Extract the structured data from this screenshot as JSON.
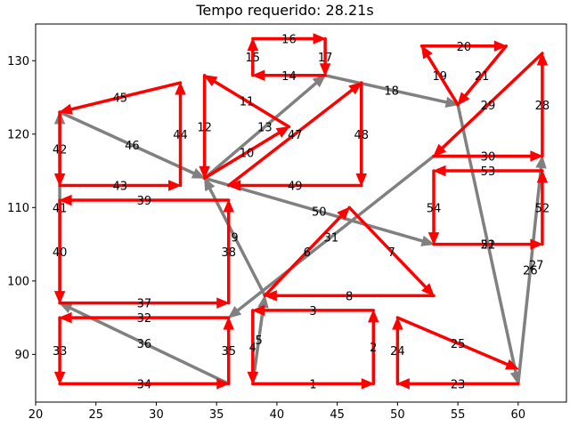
{
  "chart_data": {
    "type": "line",
    "title": "Tempo requerido: 28.21s",
    "xlabel": "",
    "ylabel": "",
    "xlim": [
      20,
      64
    ],
    "ylim": [
      83.5,
      135
    ],
    "xticks": [
      20,
      25,
      30,
      35,
      40,
      45,
      50,
      55,
      60
    ],
    "yticks": [
      90,
      100,
      110,
      120,
      130
    ],
    "grid": false,
    "colors": {
      "required": "#ff0000",
      "deadhead": "#808080"
    },
    "edges": [
      {
        "from": [
          38,
          86
        ],
        "to": [
          48,
          86
        ],
        "kind": "required",
        "label": "1"
      },
      {
        "from": [
          48,
          86
        ],
        "to": [
          48,
          96
        ],
        "kind": "required",
        "label": "2"
      },
      {
        "from": [
          48,
          96
        ],
        "to": [
          38,
          96
        ],
        "kind": "required",
        "label": "3"
      },
      {
        "from": [
          38,
          96
        ],
        "to": [
          38,
          86
        ],
        "kind": "required",
        "label": "4"
      },
      {
        "from": [
          38,
          86
        ],
        "to": [
          39,
          98
        ],
        "kind": "deadhead",
        "label": "5"
      },
      {
        "from": [
          39,
          98
        ],
        "to": [
          46,
          110
        ],
        "kind": "required",
        "label": "6"
      },
      {
        "from": [
          46,
          110
        ],
        "to": [
          53,
          98
        ],
        "kind": "required",
        "label": "7"
      },
      {
        "from": [
          53,
          98
        ],
        "to": [
          39,
          98
        ],
        "kind": "required",
        "label": "8"
      },
      {
        "from": [
          39,
          98
        ],
        "to": [
          34,
          114
        ],
        "kind": "deadhead",
        "label": "9"
      },
      {
        "from": [
          34,
          114
        ],
        "to": [
          41,
          121
        ],
        "kind": "required",
        "label": "10"
      },
      {
        "from": [
          41,
          121
        ],
        "to": [
          34,
          128
        ],
        "kind": "required",
        "label": "11"
      },
      {
        "from": [
          34,
          128
        ],
        "to": [
          34,
          114
        ],
        "kind": "required",
        "label": "12"
      },
      {
        "from": [
          34,
          114
        ],
        "to": [
          44,
          128
        ],
        "kind": "deadhead",
        "label": "13"
      },
      {
        "from": [
          44,
          128
        ],
        "to": [
          38,
          128
        ],
        "kind": "required",
        "label": "14"
      },
      {
        "from": [
          38,
          128
        ],
        "to": [
          38,
          133
        ],
        "kind": "required",
        "label": "15"
      },
      {
        "from": [
          38,
          133
        ],
        "to": [
          44,
          133
        ],
        "kind": "required",
        "label": "16"
      },
      {
        "from": [
          44,
          133
        ],
        "to": [
          44,
          128
        ],
        "kind": "required",
        "label": "17"
      },
      {
        "from": [
          44,
          128
        ],
        "to": [
          55,
          124
        ],
        "kind": "deadhead",
        "label": "18"
      },
      {
        "from": [
          55,
          124
        ],
        "to": [
          52,
          132
        ],
        "kind": "required",
        "label": "19"
      },
      {
        "from": [
          52,
          132
        ],
        "to": [
          59,
          132
        ],
        "kind": "required",
        "label": "20"
      },
      {
        "from": [
          59,
          132
        ],
        "to": [
          55,
          124
        ],
        "kind": "required",
        "label": "21"
      },
      {
        "from": [
          55,
          124
        ],
        "to": [
          60,
          86
        ],
        "kind": "deadhead",
        "label": "22"
      },
      {
        "from": [
          60,
          86
        ],
        "to": [
          50,
          86
        ],
        "kind": "required",
        "label": "23"
      },
      {
        "from": [
          50,
          86
        ],
        "to": [
          50,
          95
        ],
        "kind": "required",
        "label": "24"
      },
      {
        "from": [
          50,
          95
        ],
        "to": [
          60,
          88
        ],
        "kind": "required",
        "label": "25"
      },
      {
        "from": [
          60,
          86
        ],
        "to": [
          62,
          117
        ],
        "kind": "deadhead",
        "label": "26"
      },
      {
        "from": [
          62,
          117
        ],
        "to": [
          62,
          131
        ],
        "kind": "required",
        "label": "28"
      },
      {
        "from": [
          62,
          131
        ],
        "to": [
          53,
          117
        ],
        "kind": "required",
        "label": "29"
      },
      {
        "from": [
          53,
          117
        ],
        "to": [
          62,
          117
        ],
        "kind": "required",
        "label": "30"
      },
      {
        "from": [
          53,
          117
        ],
        "to": [
          36,
          95
        ],
        "kind": "deadhead",
        "label": "31"
      },
      {
        "from": [
          36,
          95
        ],
        "to": [
          22,
          95
        ],
        "kind": "required",
        "label": "32"
      },
      {
        "from": [
          22,
          95
        ],
        "to": [
          22,
          86
        ],
        "kind": "required",
        "label": "33"
      },
      {
        "from": [
          22,
          86
        ],
        "to": [
          36,
          86
        ],
        "kind": "required",
        "label": "34"
      },
      {
        "from": [
          36,
          86
        ],
        "to": [
          36,
          95
        ],
        "kind": "required",
        "label": "35"
      },
      {
        "from": [
          36,
          86
        ],
        "to": [
          22,
          97
        ],
        "kind": "deadhead",
        "label": "36"
      },
      {
        "from": [
          22,
          97
        ],
        "to": [
          36,
          97
        ],
        "kind": "required",
        "label": "37"
      },
      {
        "from": [
          36,
          97
        ],
        "to": [
          36,
          111
        ],
        "kind": "required",
        "label": "38"
      },
      {
        "from": [
          36,
          111
        ],
        "to": [
          22,
          111
        ],
        "kind": "required",
        "label": "39"
      },
      {
        "from": [
          22,
          111
        ],
        "to": [
          22,
          97
        ],
        "kind": "required",
        "label": "40"
      },
      {
        "from": [
          22,
          97
        ],
        "to": [
          22,
          123
        ],
        "kind": "deadhead",
        "label": "41"
      },
      {
        "from": [
          22,
          123
        ],
        "to": [
          22,
          113
        ],
        "kind": "required",
        "label": "42"
      },
      {
        "from": [
          22,
          113
        ],
        "to": [
          32,
          113
        ],
        "kind": "required",
        "label": "43"
      },
      {
        "from": [
          32,
          113
        ],
        "to": [
          32,
          127
        ],
        "kind": "required",
        "label": "44"
      },
      {
        "from": [
          32,
          127
        ],
        "to": [
          22,
          123
        ],
        "kind": "required",
        "label": "45"
      },
      {
        "from": [
          22,
          123
        ],
        "to": [
          34,
          114
        ],
        "kind": "deadhead",
        "label": "46"
      },
      {
        "from": [
          36,
          113
        ],
        "to": [
          47,
          127
        ],
        "kind": "required",
        "label": "47"
      },
      {
        "from": [
          47,
          127
        ],
        "to": [
          47,
          113
        ],
        "kind": "required",
        "label": "48"
      },
      {
        "from": [
          47,
          113
        ],
        "to": [
          36,
          113
        ],
        "kind": "required",
        "label": "49"
      },
      {
        "from": [
          34,
          114
        ],
        "to": [
          53,
          105
        ],
        "kind": "deadhead",
        "label": "50"
      },
      {
        "from": [
          53,
          105
        ],
        "to": [
          62,
          105
        ],
        "kind": "required",
        "label": "51"
      },
      {
        "from": [
          62,
          105
        ],
        "to": [
          62,
          115
        ],
        "kind": "required",
        "label": "52"
      },
      {
        "from": [
          62,
          115
        ],
        "to": [
          53,
          115
        ],
        "kind": "required",
        "label": "53"
      },
      {
        "from": [
          53,
          115
        ],
        "to": [
          53,
          105
        ],
        "kind": "required",
        "label": "54"
      }
    ],
    "extra_labels": [
      {
        "x": 61.5,
        "y": 102.2,
        "text": "27"
      }
    ]
  }
}
